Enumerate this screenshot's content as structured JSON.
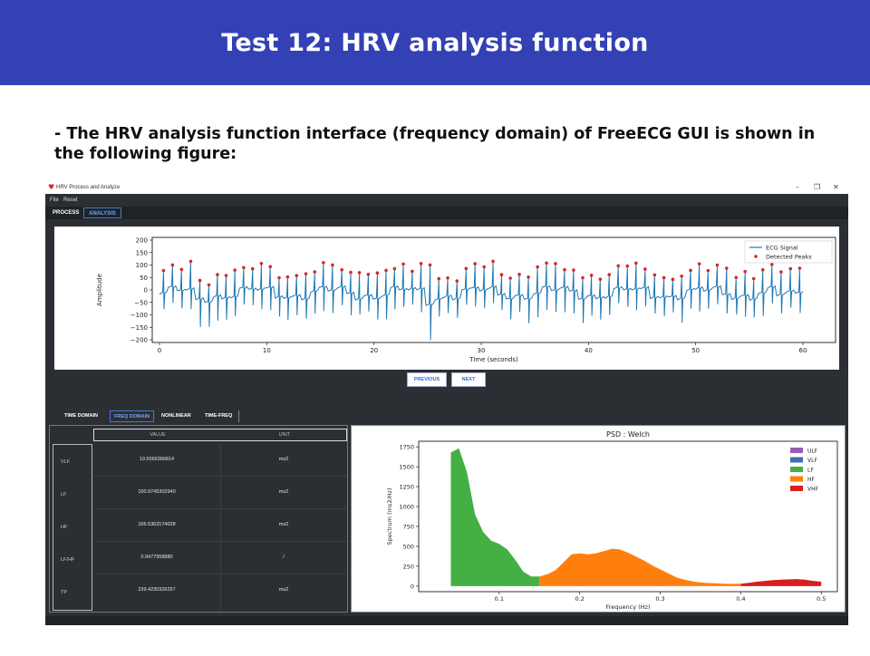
{
  "slide": {
    "title": "Test 12: HRV analysis function",
    "description": "- The HRV analysis function interface (frequency domain) of FreeECG GUI is shown in the following figure:"
  },
  "window": {
    "title": "HRV Process and Analyze",
    "controls": {
      "minimize": "–",
      "restore": "❐",
      "close": "✕"
    },
    "menu": [
      "File",
      "Reset"
    ],
    "tabs": [
      {
        "label": "PROCESS",
        "active": false
      },
      {
        "label": "ANALYSIS",
        "active": true
      }
    ]
  },
  "ecg_plot": {
    "legend": [
      "ECG Signal",
      "Detected Peaks"
    ],
    "xlabel": "Time (seconds)",
    "ylabel": "Amplitude",
    "xticks": [
      "0",
      "10",
      "20",
      "30",
      "40",
      "50",
      "60"
    ],
    "yticks": [
      "200",
      "150",
      "100",
      "50",
      "0",
      "−50",
      "−100",
      "−150",
      "−200"
    ],
    "colors": {
      "signal": "#1f77b4",
      "peaks": "#d62728"
    }
  },
  "navigation": {
    "previous": "PREVIOUS",
    "next": "NEXT"
  },
  "analysis_tabs": [
    {
      "label": "TIME DOMAIN",
      "active": false
    },
    {
      "label": "FREQ DOMAIN",
      "active": true
    },
    {
      "label": "NONLINEAR",
      "active": false
    },
    {
      "label": "TIME-FREQ",
      "active": false
    }
  ],
  "results_table": {
    "headers": [
      "VALUE",
      "UNIT"
    ],
    "rows": [
      {
        "label": "VLF",
        "value": "19.5566366814",
        "unit": "ms2"
      },
      {
        "label": "LF",
        "value": "100.9745302940",
        "unit": "ms2"
      },
      {
        "label": "HF",
        "value": "106.5363174028",
        "unit": "ms2"
      },
      {
        "label": "LF/HF",
        "value": "0.9477958880",
        "unit": "/"
      },
      {
        "label": "TP",
        "value": "239.4230326257",
        "unit": "ms2"
      }
    ]
  },
  "chart_data": {
    "type": "area",
    "title": "PSD : Welch",
    "xlabel": "Frequency (Hz)",
    "ylabel": "Spectrum (ms2/Hz)",
    "xlim": [
      0.0,
      0.52
    ],
    "ylim": [
      -70,
      1820
    ],
    "xticks": [
      0.1,
      0.2,
      0.3,
      0.4,
      0.5
    ],
    "yticks": [
      0,
      250,
      500,
      750,
      1000,
      1250,
      1500,
      1750
    ],
    "x_tick_labels": [
      "0.1",
      "0.2",
      "0.3",
      "0.4",
      "0.5"
    ],
    "y_tick_labels": [
      "0",
      "250",
      "500",
      "750",
      "1000",
      "1250",
      "1500",
      "1750"
    ],
    "legend_position": "top-right",
    "series": [
      {
        "name": "ULF",
        "color": "#9b59b6",
        "points": []
      },
      {
        "name": "VLF",
        "color": "#3a6fb0",
        "points": []
      },
      {
        "name": "LF",
        "color": "#44b044",
        "points": [
          [
            0.04,
            1680
          ],
          [
            0.05,
            1730
          ],
          [
            0.06,
            1430
          ],
          [
            0.07,
            900
          ],
          [
            0.08,
            680
          ],
          [
            0.09,
            570
          ],
          [
            0.1,
            530
          ],
          [
            0.11,
            460
          ],
          [
            0.12,
            330
          ],
          [
            0.13,
            180
          ],
          [
            0.14,
            120
          ],
          [
            0.15,
            120
          ]
        ]
      },
      {
        "name": "HF",
        "color": "#ff7f0e",
        "points": [
          [
            0.15,
            120
          ],
          [
            0.16,
            150
          ],
          [
            0.17,
            200
          ],
          [
            0.18,
            300
          ],
          [
            0.19,
            400
          ],
          [
            0.2,
            410
          ],
          [
            0.21,
            400
          ],
          [
            0.22,
            410
          ],
          [
            0.23,
            440
          ],
          [
            0.24,
            470
          ],
          [
            0.25,
            460
          ],
          [
            0.26,
            420
          ],
          [
            0.27,
            370
          ],
          [
            0.28,
            320
          ],
          [
            0.29,
            260
          ],
          [
            0.3,
            210
          ],
          [
            0.31,
            160
          ],
          [
            0.32,
            110
          ],
          [
            0.33,
            80
          ],
          [
            0.34,
            60
          ],
          [
            0.35,
            45
          ],
          [
            0.36,
            38
          ],
          [
            0.37,
            35
          ],
          [
            0.38,
            30
          ],
          [
            0.39,
            28
          ],
          [
            0.4,
            30
          ]
        ]
      },
      {
        "name": "VHF",
        "color": "#d62020",
        "points": [
          [
            0.4,
            30
          ],
          [
            0.41,
            40
          ],
          [
            0.42,
            55
          ],
          [
            0.43,
            65
          ],
          [
            0.44,
            75
          ],
          [
            0.45,
            80
          ],
          [
            0.46,
            85
          ],
          [
            0.47,
            88
          ],
          [
            0.48,
            80
          ],
          [
            0.49,
            65
          ],
          [
            0.5,
            55
          ]
        ]
      }
    ]
  }
}
